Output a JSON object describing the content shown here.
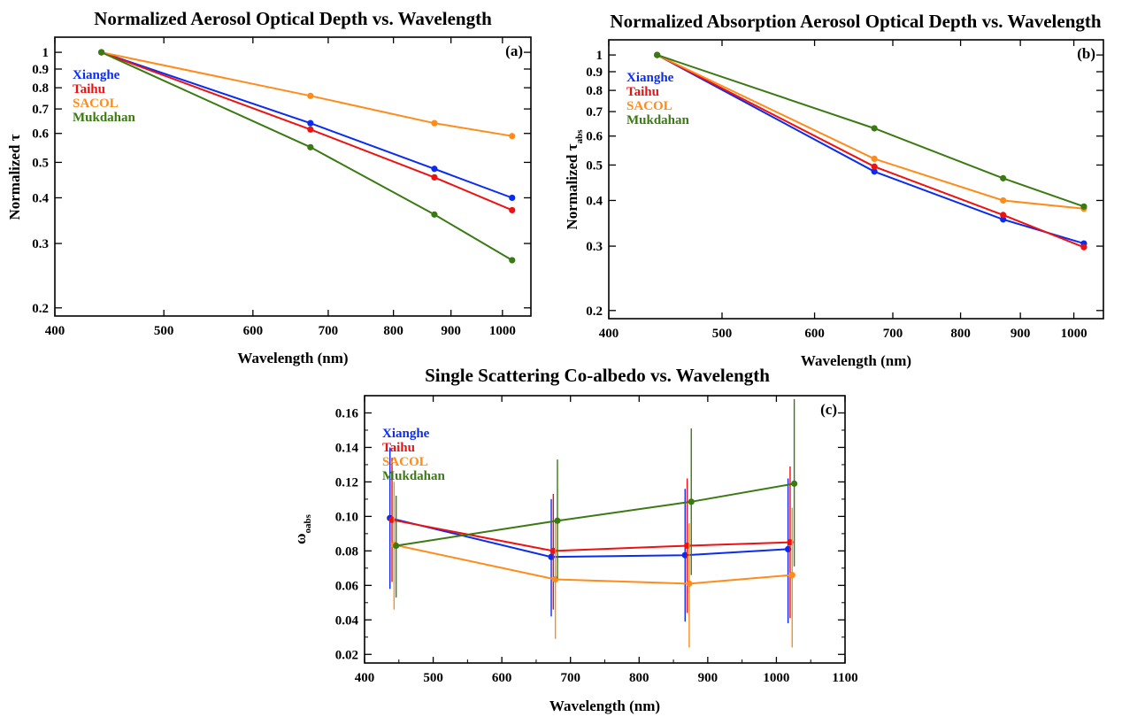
{
  "colors": {
    "Xianghe": "#0a2cf0",
    "Taihu": "#ee1111",
    "SACOL": "#ff8c1a",
    "Mukdahan": "#3a7a12"
  },
  "chart_data": [
    {
      "type": "line",
      "title": "Normalized Aerosol Optical Depth vs. Wavelength",
      "panel_label": "(a)",
      "xlabel": "Wavelength (nm)",
      "ylabel": "Normalized τ",
      "x_scale": "log",
      "y_scale": "log",
      "xlim": [
        400,
        1060
      ],
      "ylim": [
        0.19,
        1.1
      ],
      "x_ticks": [
        400,
        500,
        600,
        700,
        800,
        900,
        1000
      ],
      "x_tick_labels": [
        "400",
        "500",
        "600",
        "700",
        "800",
        "900",
        "1000"
      ],
      "y_ticks": [
        0.2,
        0.3,
        0.4,
        0.5,
        0.6,
        0.7,
        0.8,
        0.9,
        1
      ],
      "y_tick_labels": [
        "0.2",
        "0.3",
        "0.4",
        "0.5",
        "0.6",
        "0.7",
        "0.8",
        "0.9",
        "1"
      ],
      "legend_position": "top-left",
      "x": [
        440,
        675,
        870,
        1020
      ],
      "series": [
        {
          "name": "Xianghe",
          "values": [
            1.0,
            0.64,
            0.48,
            0.4
          ]
        },
        {
          "name": "Taihu",
          "values": [
            1.0,
            0.615,
            0.455,
            0.37
          ]
        },
        {
          "name": "SACOL",
          "values": [
            1.0,
            0.76,
            0.64,
            0.59
          ]
        },
        {
          "name": "Mukdahan",
          "values": [
            1.0,
            0.55,
            0.36,
            0.27
          ]
        }
      ]
    },
    {
      "type": "line",
      "title": "Normalized Absorption Aerosol Optical Depth vs. Wavelength",
      "panel_label": "(b)",
      "xlabel": "Wavelength (nm)",
      "ylabel": "Normalized τ",
      "ylabel_sub": "abs",
      "x_scale": "log",
      "y_scale": "log",
      "xlim": [
        400,
        1060
      ],
      "ylim": [
        0.19,
        1.1
      ],
      "x_ticks": [
        400,
        500,
        600,
        700,
        800,
        900,
        1000
      ],
      "x_tick_labels": [
        "400",
        "500",
        "600",
        "700",
        "800",
        "900",
        "1000"
      ],
      "y_ticks": [
        0.2,
        0.3,
        0.4,
        0.5,
        0.6,
        0.7,
        0.8,
        0.9,
        1
      ],
      "y_tick_labels": [
        "0.2",
        "0.3",
        "0.4",
        "0.5",
        "0.6",
        "0.7",
        "0.8",
        "0.9",
        "1"
      ],
      "legend_position": "top-left",
      "x": [
        440,
        675,
        870,
        1020
      ],
      "series": [
        {
          "name": "Xianghe",
          "values": [
            1.0,
            0.48,
            0.355,
            0.305
          ]
        },
        {
          "name": "Taihu",
          "values": [
            1.0,
            0.495,
            0.365,
            0.298
          ]
        },
        {
          "name": "SACOL",
          "values": [
            1.0,
            0.52,
            0.4,
            0.38
          ]
        },
        {
          "name": "Mukdahan",
          "values": [
            1.0,
            0.63,
            0.46,
            0.385
          ]
        }
      ]
    },
    {
      "type": "line",
      "title": "Single Scattering Co-albedo vs. Wavelength",
      "panel_label": "(c)",
      "xlabel": "Wavelength (nm)",
      "ylabel": "ω",
      "ylabel_sub": "oabs",
      "x_scale": "linear",
      "y_scale": "linear",
      "xlim": [
        400,
        1100
      ],
      "ylim": [
        0.015,
        0.17
      ],
      "x_ticks": [
        400,
        500,
        600,
        700,
        800,
        900,
        1000,
        1100
      ],
      "x_tick_labels": [
        "400",
        "500",
        "600",
        "700",
        "800",
        "900",
        "1000",
        "1100"
      ],
      "y_ticks": [
        0.02,
        0.04,
        0.06,
        0.08,
        0.1,
        0.12,
        0.14,
        0.16
      ],
      "y_tick_labels": [
        "0.02",
        "0.04",
        "0.06",
        "0.08",
        "0.10",
        "0.12",
        "0.14",
        "0.16"
      ],
      "legend_position": "top-left",
      "series": [
        {
          "name": "Xianghe",
          "x": [
            437,
            672,
            867,
            1017
          ],
          "values": [
            0.099,
            0.0765,
            0.0775,
            0.081
          ],
          "error_low": [
            0.058,
            0.042,
            0.039,
            0.038
          ],
          "error_high": [
            0.14,
            0.11,
            0.116,
            0.122
          ]
        },
        {
          "name": "Taihu",
          "x": [
            440,
            675,
            870,
            1020
          ],
          "values": [
            0.098,
            0.08,
            0.083,
            0.085
          ],
          "error_low": [
            0.062,
            0.046,
            0.044,
            0.041
          ],
          "error_high": [
            0.134,
            0.113,
            0.122,
            0.129
          ]
        },
        {
          "name": "SACOL",
          "x": [
            443,
            678,
            873,
            1023
          ],
          "values": [
            0.0835,
            0.0635,
            0.061,
            0.066
          ],
          "error_low": [
            0.046,
            0.029,
            0.024,
            0.024
          ],
          "error_high": [
            0.12,
            0.098,
            0.096,
            0.105
          ]
        },
        {
          "name": "Mukdahan",
          "x": [
            446,
            681,
            876,
            1026
          ],
          "values": [
            0.083,
            0.0975,
            0.1085,
            0.119
          ],
          "error_low": [
            0.053,
            0.064,
            0.066,
            0.071
          ],
          "error_high": [
            0.112,
            0.133,
            0.151,
            0.168
          ]
        }
      ]
    }
  ]
}
